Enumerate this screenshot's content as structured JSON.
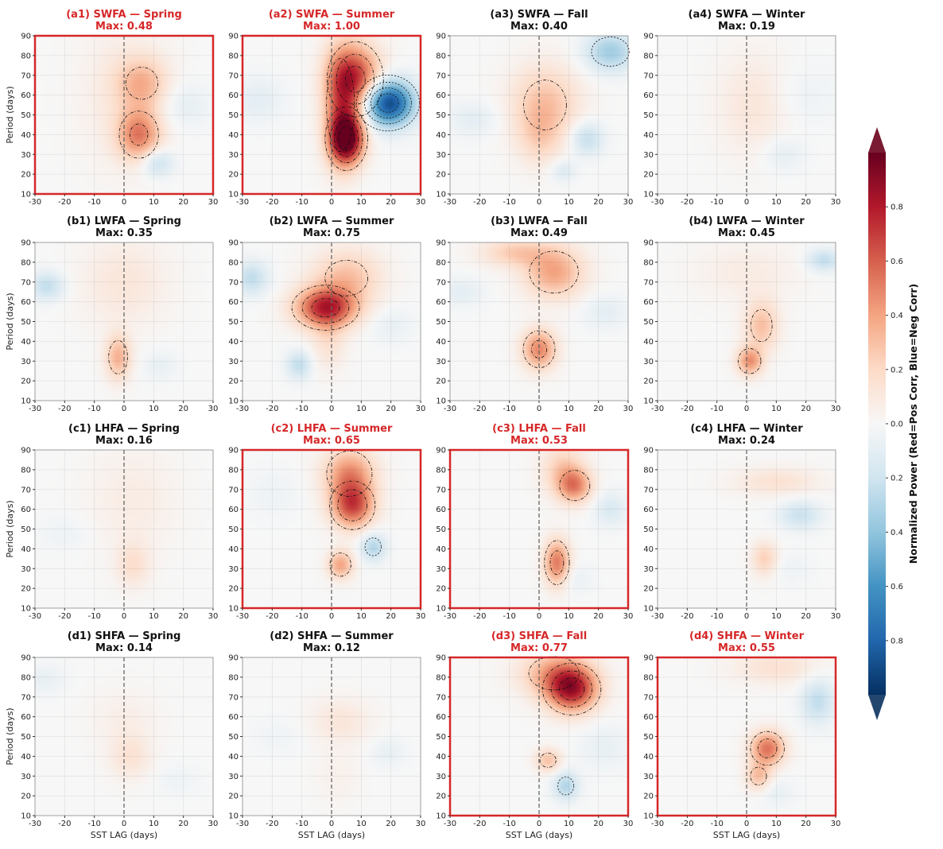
{
  "chart_data": {
    "type": "heatmap",
    "figure_layout": "4x4 grid of panels",
    "x_label": "SST LAG (days)",
    "y_label": "Period (days)",
    "x_range": [
      -30,
      30
    ],
    "y_range": [
      10,
      90
    ],
    "x_ticks": [
      "-30",
      "-20",
      "-10",
      "0",
      "10",
      "20",
      "30"
    ],
    "y_ticks": [
      "10",
      "20",
      "30",
      "40",
      "50",
      "60",
      "70",
      "80",
      "90"
    ],
    "zero_lag_line": "dashed vertical at lag 0",
    "grid": true,
    "colorbar": {
      "label": "Normalized Power (Red=Pos Corr, Blue=Neg Corr)",
      "ticks": [
        "0.8",
        "0.6",
        "0.4",
        "0.2",
        "0.0",
        "0.2",
        "0.4",
        "0.6",
        "0.8"
      ],
      "tick_values": [
        0.8,
        0.6,
        0.4,
        0.2,
        0.0,
        -0.2,
        -0.4,
        -0.6,
        -0.8
      ],
      "range": [
        -1,
        1
      ],
      "extend": "both",
      "colormap": "RdBu_r",
      "placement": "right"
    },
    "contour_levels": [
      -0.8,
      -0.6,
      -0.4,
      -0.2,
      0.0,
      0.2,
      0.4,
      0.6,
      0.8
    ],
    "highlight_color": "#d62728",
    "panels": [
      {
        "id": "a1",
        "title": "(a1) SWFA — Spring",
        "max_label": "Max: 0.48",
        "max": 0.48,
        "highlight": true,
        "blobs": [
          {
            "lag": 5,
            "period": 40,
            "amp": 0.48,
            "sl": 5,
            "sp": 9
          },
          {
            "lag": 6,
            "period": 66,
            "amp": 0.3,
            "sl": 6,
            "sp": 9
          },
          {
            "lag": 0,
            "period": 60,
            "amp": 0.1,
            "sl": 10,
            "sp": 25
          },
          {
            "lag": 11,
            "period": 26,
            "amp": -0.25,
            "sl": 4,
            "sp": 5
          },
          {
            "lag": 20,
            "period": 55,
            "amp": -0.1,
            "sl": 6,
            "sp": 8
          }
        ]
      },
      {
        "id": "a2",
        "title": "(a2) SWFA — Summer",
        "max_label": "Max: 1.00",
        "max": 1.0,
        "highlight": true,
        "blobs": [
          {
            "lag": 5,
            "period": 38,
            "amp": 1.0,
            "sl": 4,
            "sp": 9
          },
          {
            "lag": 8,
            "period": 68,
            "amp": 0.7,
            "sl": 6,
            "sp": 12
          },
          {
            "lag": 3,
            "period": 55,
            "amp": 0.4,
            "sl": 4,
            "sp": 20
          },
          {
            "lag": 19,
            "period": 56,
            "amp": -0.95,
            "sl": 6,
            "sp": 8
          },
          {
            "lag": -25,
            "period": 58,
            "amp": -0.1,
            "sl": 6,
            "sp": 8
          }
        ]
      },
      {
        "id": "a3",
        "title": "(a3) SWFA — Fall",
        "max_label": "Max: 0.40",
        "max": 0.4,
        "highlight": false,
        "blobs": [
          {
            "lag": 2,
            "period": 55,
            "amp": 0.3,
            "sl": 8,
            "sp": 14
          },
          {
            "lag": 0,
            "period": 38,
            "amp": 0.15,
            "sl": 5,
            "sp": 10
          },
          {
            "lag": 24,
            "period": 82,
            "amp": -0.35,
            "sl": 6,
            "sp": 7
          },
          {
            "lag": 16,
            "period": 38,
            "amp": -0.25,
            "sl": 4,
            "sp": 6
          },
          {
            "lag": 8,
            "period": 22,
            "amp": -0.15,
            "sl": 3,
            "sp": 4
          },
          {
            "lag": -22,
            "period": 48,
            "amp": -0.1,
            "sl": 6,
            "sp": 6
          }
        ]
      },
      {
        "id": "a4",
        "title": "(a4) SWFA — Winter",
        "max_label": "Max: 0.19",
        "max": 0.19,
        "highlight": false,
        "blobs": [
          {
            "lag": 2,
            "period": 55,
            "amp": 0.12,
            "sl": 8,
            "sp": 18
          },
          {
            "lag": 12,
            "period": 30,
            "amp": -0.1,
            "sl": 5,
            "sp": 6
          },
          {
            "lag": 20,
            "period": 60,
            "amp": -0.05,
            "sl": 8,
            "sp": 10
          }
        ]
      },
      {
        "id": "b1",
        "title": "(b1) LWFA — Spring",
        "max_label": "Max: 0.35",
        "max": 0.35,
        "highlight": false,
        "blobs": [
          {
            "lag": -2,
            "period": 32,
            "amp": 0.35,
            "sl": 3,
            "sp": 8
          },
          {
            "lag": 0,
            "period": 70,
            "amp": 0.12,
            "sl": 10,
            "sp": 15
          },
          {
            "lag": -26,
            "period": 68,
            "amp": -0.25,
            "sl": 4,
            "sp": 5
          },
          {
            "lag": 12,
            "period": 28,
            "amp": -0.08,
            "sl": 4,
            "sp": 5
          }
        ]
      },
      {
        "id": "b2",
        "title": "(b2) LWFA — Summer",
        "max_label": "Max: 0.75",
        "max": 0.75,
        "highlight": false,
        "blobs": [
          {
            "lag": -2,
            "period": 57,
            "amp": 0.75,
            "sl": 7,
            "sp": 7
          },
          {
            "lag": 5,
            "period": 72,
            "amp": 0.3,
            "sl": 8,
            "sp": 10
          },
          {
            "lag": -1,
            "period": 40,
            "amp": 0.15,
            "sl": 4,
            "sp": 10
          },
          {
            "lag": -27,
            "period": 72,
            "amp": -0.25,
            "sl": 4,
            "sp": 6
          },
          {
            "lag": -11,
            "period": 28,
            "amp": -0.25,
            "sl": 3,
            "sp": 5
          },
          {
            "lag": 20,
            "period": 48,
            "amp": -0.08,
            "sl": 5,
            "sp": 6
          }
        ]
      },
      {
        "id": "b3",
        "title": "(b3) LWFA — Fall",
        "max_label": "Max: 0.49",
        "max": 0.49,
        "highlight": false,
        "blobs": [
          {
            "lag": 0,
            "period": 36,
            "amp": 0.49,
            "sl": 4,
            "sp": 7
          },
          {
            "lag": 5,
            "period": 75,
            "amp": 0.4,
            "sl": 7,
            "sp": 9
          },
          {
            "lag": -8,
            "period": 85,
            "amp": 0.25,
            "sl": 8,
            "sp": 5
          },
          {
            "lag": -26,
            "period": 65,
            "amp": -0.1,
            "sl": 5,
            "sp": 5
          },
          {
            "lag": 22,
            "period": 55,
            "amp": -0.1,
            "sl": 5,
            "sp": 6
          }
        ]
      },
      {
        "id": "b4",
        "title": "(b4) LWFA — Winter",
        "max_label": "Max: 0.45",
        "max": 0.45,
        "highlight": false,
        "blobs": [
          {
            "lag": 1,
            "period": 30,
            "amp": 0.45,
            "sl": 3,
            "sp": 5
          },
          {
            "lag": 5,
            "period": 48,
            "amp": 0.3,
            "sl": 4,
            "sp": 9
          },
          {
            "lag": 0,
            "period": 75,
            "amp": 0.08,
            "sl": 12,
            "sp": 10
          },
          {
            "lag": 26,
            "period": 81,
            "amp": -0.25,
            "sl": 4,
            "sp": 4
          }
        ]
      },
      {
        "id": "c1",
        "title": "(c1) LHFA — Spring",
        "max_label": "Max: 0.16",
        "max": 0.16,
        "highlight": false,
        "blobs": [
          {
            "lag": 3,
            "period": 32,
            "amp": 0.16,
            "sl": 4,
            "sp": 8
          },
          {
            "lag": 3,
            "period": 65,
            "amp": 0.08,
            "sl": 10,
            "sp": 18
          },
          {
            "lag": -20,
            "period": 48,
            "amp": -0.05,
            "sl": 6,
            "sp": 6
          }
        ]
      },
      {
        "id": "c2",
        "title": "(c2) LHFA — Summer",
        "max_label": "Max: 0.65",
        "max": 0.65,
        "highlight": true,
        "blobs": [
          {
            "lag": 7,
            "period": 62,
            "amp": 0.65,
            "sl": 5,
            "sp": 8
          },
          {
            "lag": 6,
            "period": 78,
            "amp": 0.45,
            "sl": 6,
            "sp": 9
          },
          {
            "lag": 3,
            "period": 32,
            "amp": 0.4,
            "sl": 3,
            "sp": 5
          },
          {
            "lag": 14,
            "period": 41,
            "amp": -0.3,
            "sl": 3,
            "sp": 5
          },
          {
            "lag": -20,
            "period": 68,
            "amp": -0.05,
            "sl": 6,
            "sp": 8
          }
        ]
      },
      {
        "id": "c3",
        "title": "(c3) LHFA — Fall",
        "max_label": "Max: 0.53",
        "max": 0.53,
        "highlight": true,
        "blobs": [
          {
            "lag": 6,
            "period": 33,
            "amp": 0.53,
            "sl": 3,
            "sp": 8
          },
          {
            "lag": 12,
            "period": 72,
            "amp": 0.45,
            "sl": 4,
            "sp": 6
          },
          {
            "lag": 8,
            "period": 80,
            "amp": 0.25,
            "sl": 5,
            "sp": 9
          },
          {
            "lag": 24,
            "period": 60,
            "amp": -0.15,
            "sl": 4,
            "sp": 6
          },
          {
            "lag": 12,
            "period": 25,
            "amp": -0.08,
            "sl": 4,
            "sp": 5
          }
        ]
      },
      {
        "id": "c4",
        "title": "(c4) LHFA — Winter",
        "max_label": "Max: 0.24",
        "max": 0.24,
        "highlight": false,
        "blobs": [
          {
            "lag": 6,
            "period": 35,
            "amp": 0.24,
            "sl": 3,
            "sp": 6
          },
          {
            "lag": 10,
            "period": 74,
            "amp": 0.15,
            "sl": 10,
            "sp": 5
          },
          {
            "lag": 18,
            "period": 57,
            "amp": -0.22,
            "sl": 5,
            "sp": 5
          },
          {
            "lag": 15,
            "period": 30,
            "amp": -0.05,
            "sl": 5,
            "sp": 5
          }
        ]
      },
      {
        "id": "d1",
        "title": "(d1) SHFA — Spring",
        "max_label": "Max: 0.14",
        "max": 0.14,
        "highlight": false,
        "blobs": [
          {
            "lag": 2,
            "period": 40,
            "amp": 0.14,
            "sl": 5,
            "sp": 8
          },
          {
            "lag": 0,
            "period": 60,
            "amp": 0.06,
            "sl": 8,
            "sp": 10
          },
          {
            "lag": -27,
            "period": 79,
            "amp": -0.08,
            "sl": 5,
            "sp": 5
          },
          {
            "lag": 18,
            "period": 28,
            "amp": -0.05,
            "sl": 5,
            "sp": 5
          }
        ]
      },
      {
        "id": "d2",
        "title": "(d2) SHFA — Summer",
        "max_label": "Max: 0.12",
        "max": 0.12,
        "highlight": false,
        "blobs": [
          {
            "lag": 3,
            "period": 58,
            "amp": 0.12,
            "sl": 7,
            "sp": 8
          },
          {
            "lag": 2,
            "period": 30,
            "amp": 0.05,
            "sl": 5,
            "sp": 10
          },
          {
            "lag": 19,
            "period": 42,
            "amp": -0.08,
            "sl": 4,
            "sp": 5
          },
          {
            "lag": -18,
            "period": 50,
            "amp": -0.04,
            "sl": 6,
            "sp": 6
          }
        ]
      },
      {
        "id": "d3",
        "title": "(d3) SHFA — Fall",
        "max_label": "Max: 0.77",
        "max": 0.77,
        "highlight": true,
        "blobs": [
          {
            "lag": 11,
            "period": 74,
            "amp": 0.77,
            "sl": 6,
            "sp": 8
          },
          {
            "lag": 5,
            "period": 82,
            "amp": 0.35,
            "sl": 8,
            "sp": 8
          },
          {
            "lag": 3,
            "period": 38,
            "amp": 0.3,
            "sl": 3,
            "sp": 4
          },
          {
            "lag": 9,
            "period": 25,
            "amp": -0.3,
            "sl": 3,
            "sp": 5
          },
          {
            "lag": 22,
            "period": 45,
            "amp": -0.08,
            "sl": 6,
            "sp": 8
          }
        ]
      },
      {
        "id": "d4",
        "title": "(d4) SHFA — Winter",
        "max_label": "Max: 0.55",
        "max": 0.55,
        "highlight": true,
        "blobs": [
          {
            "lag": 7,
            "period": 44,
            "amp": 0.55,
            "sl": 4,
            "sp": 6
          },
          {
            "lag": 4,
            "period": 30,
            "amp": 0.3,
            "sl": 3,
            "sp": 5
          },
          {
            "lag": 10,
            "period": 85,
            "amp": 0.15,
            "sl": 10,
            "sp": 6
          },
          {
            "lag": 24,
            "period": 68,
            "amp": -0.25,
            "sl": 4,
            "sp": 8
          },
          {
            "lag": 10,
            "period": 22,
            "amp": -0.08,
            "sl": 4,
            "sp": 5
          }
        ]
      }
    ]
  }
}
